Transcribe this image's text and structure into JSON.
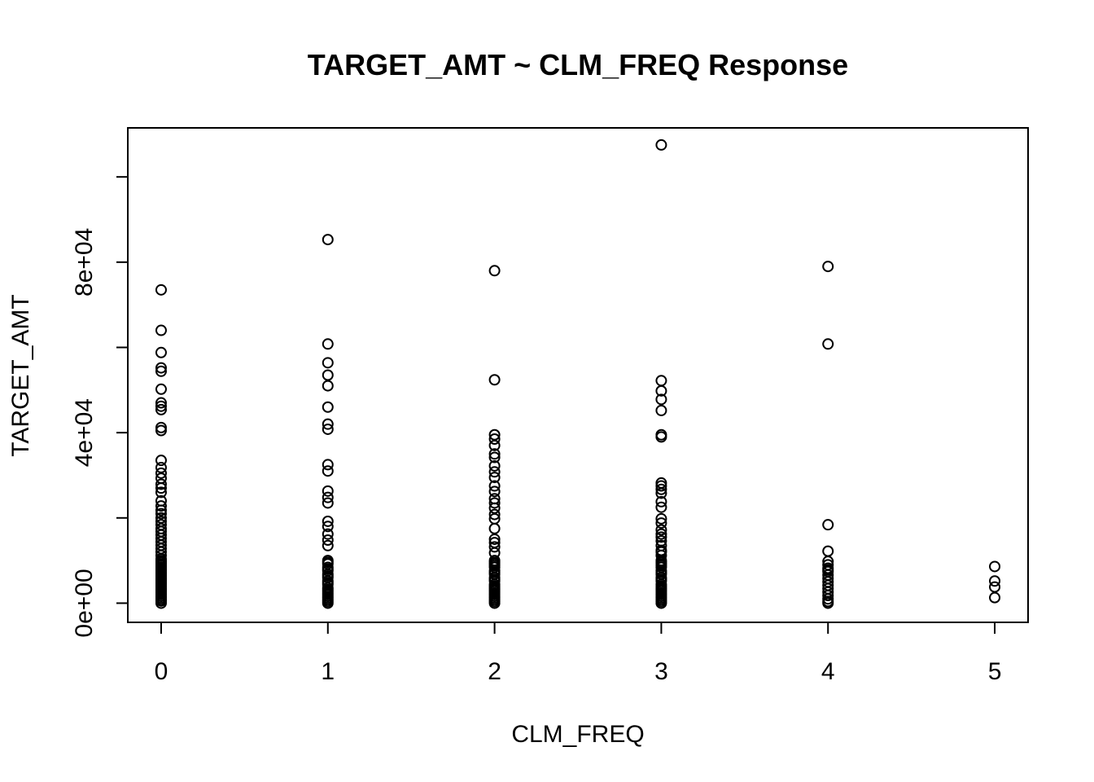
{
  "chart_data": {
    "type": "scatter",
    "title": "TARGET_AMT ~ CLM_FREQ Response",
    "xlabel": "CLM_FREQ",
    "ylabel": "TARGET_AMT",
    "xlim": [
      -0.2,
      5.2
    ],
    "ylim": [
      -4500,
      111500
    ],
    "x_ticks": [
      0,
      1,
      2,
      3,
      4,
      5
    ],
    "x_tick_labels": [
      "0",
      "1",
      "2",
      "3",
      "4",
      "5"
    ],
    "y_ticks": [
      0,
      20000,
      40000,
      60000,
      80000,
      100000
    ],
    "y_tick_labels": [
      "0e+00",
      "",
      "4e+04",
      "",
      "8e+04",
      ""
    ],
    "grid": false,
    "legend": "none",
    "marker": "open-circle",
    "series": [
      {
        "x": [
          0,
          0,
          0,
          0,
          0,
          0,
          0,
          0,
          0,
          0,
          0,
          0,
          0,
          0,
          0,
          0,
          0,
          0,
          0,
          0,
          0,
          0,
          0,
          0,
          0,
          0,
          0,
          0,
          0,
          0,
          0,
          0,
          0,
          0,
          0,
          0,
          0,
          0,
          0,
          0,
          0,
          0,
          0,
          0,
          0,
          0,
          0,
          0,
          0,
          0,
          0,
          0,
          0,
          0,
          0,
          0,
          0,
          0,
          0,
          0,
          0
        ],
        "y": [
          73500,
          64000,
          58800,
          55200,
          54400,
          50200,
          47000,
          46200,
          45400,
          41200,
          40500,
          33500,
          31800,
          30500,
          29300,
          27900,
          27000,
          26000,
          24000,
          22800,
          21800,
          21000,
          20000,
          19200,
          18400,
          17500,
          16800,
          16000,
          15200,
          14400,
          13600,
          12800,
          12000,
          11200,
          10400,
          9600,
          8800,
          8000,
          7200,
          6400,
          5600,
          4800,
          4000,
          3200,
          2400,
          1600,
          800,
          0,
          500,
          1200,
          2000,
          2800,
          3600,
          4400,
          5200,
          6000,
          6800,
          7600,
          8400,
          9200,
          10000
        ]
      },
      {
        "x": [
          1,
          1,
          1,
          1,
          1,
          1,
          1,
          1,
          1,
          1,
          1,
          1,
          1,
          1,
          1,
          1,
          1,
          1,
          1,
          1,
          1,
          1,
          1,
          1,
          1,
          1,
          1,
          1,
          1,
          1,
          1,
          1,
          1,
          1,
          1,
          1,
          1,
          1,
          1,
          1
        ],
        "y": [
          85300,
          60800,
          56400,
          53500,
          51000,
          46000,
          42000,
          40800,
          32500,
          31000,
          26300,
          24800,
          23500,
          19200,
          18000,
          16200,
          14800,
          13500,
          10000,
          9200,
          8400,
          7600,
          6800,
          6000,
          5200,
          4400,
          3600,
          2800,
          2000,
          1200,
          400,
          0,
          9600,
          8000,
          6400,
          4800,
          3200,
          1600,
          800,
          2400
        ]
      },
      {
        "x": [
          2,
          2,
          2,
          2,
          2,
          2,
          2,
          2,
          2,
          2,
          2,
          2,
          2,
          2,
          2,
          2,
          2,
          2,
          2,
          2,
          2,
          2,
          2,
          2,
          2,
          2,
          2,
          2,
          2,
          2,
          2,
          2,
          2,
          2,
          2,
          2,
          2,
          2,
          2,
          2,
          2,
          2,
          2,
          2,
          2
        ],
        "y": [
          78000,
          52400,
          39500,
          38500,
          37000,
          35000,
          34200,
          32200,
          30800,
          29500,
          27500,
          26200,
          24500,
          23500,
          22300,
          20800,
          19800,
          17500,
          15000,
          14200,
          13200,
          11800,
          10000,
          9200,
          8400,
          7600,
          6800,
          6000,
          5200,
          4400,
          3600,
          2800,
          2000,
          1200,
          400,
          0,
          9600,
          8800,
          7200,
          5600,
          4000,
          2400,
          1600,
          800,
          3200
        ]
      },
      {
        "x": [
          3,
          3,
          3,
          3,
          3,
          3,
          3,
          3,
          3,
          3,
          3,
          3,
          3,
          3,
          3,
          3,
          3,
          3,
          3,
          3,
          3,
          3,
          3,
          3,
          3,
          3,
          3,
          3,
          3,
          3,
          3,
          3,
          3,
          3,
          3,
          3,
          3,
          3,
          3,
          3,
          3,
          3,
          3,
          3,
          3,
          3
        ],
        "y": [
          107500,
          52200,
          49800,
          47800,
          45200,
          39500,
          39000,
          28200,
          27500,
          26700,
          25800,
          23800,
          22500,
          19800,
          18800,
          17200,
          16200,
          15500,
          14600,
          13500,
          12400,
          10000,
          9200,
          8400,
          7600,
          6800,
          6000,
          5200,
          4400,
          3600,
          2800,
          2000,
          1200,
          400,
          0,
          9600,
          8800,
          7200,
          5600,
          4000,
          2400,
          1600,
          800,
          3200,
          11200,
          12000
        ]
      },
      {
        "x": [
          4,
          4,
          4,
          4,
          4,
          4,
          4,
          4,
          4,
          4,
          4,
          4,
          4,
          4,
          4,
          4,
          4,
          4,
          4
        ],
        "y": [
          79000,
          60800,
          18400,
          12200,
          9800,
          9000,
          8200,
          7400,
          6600,
          5800,
          5000,
          4200,
          3400,
          2600,
          1800,
          1000,
          400,
          0,
          7800
        ]
      },
      {
        "x": [
          5,
          5,
          5,
          5
        ],
        "y": [
          8600,
          5200,
          3800,
          1300
        ]
      }
    ]
  }
}
